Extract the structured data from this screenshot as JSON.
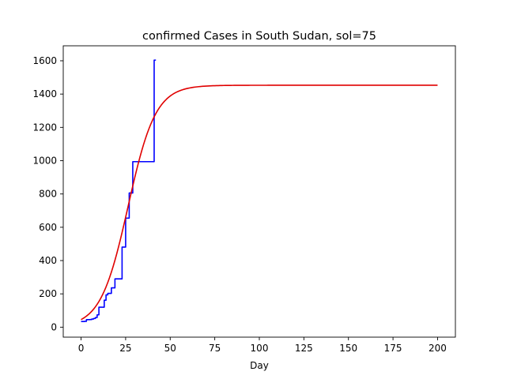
{
  "chart_data": {
    "type": "line",
    "title": "confirmed Cases in South Sudan, sol=75",
    "xlabel": "Day",
    "ylabel": "",
    "xlim": [
      -10,
      210
    ],
    "ylim": [
      -60,
      1690
    ],
    "xticks": [
      0,
      25,
      50,
      75,
      100,
      125,
      150,
      175,
      200
    ],
    "yticks": [
      0,
      200,
      400,
      600,
      800,
      1000,
      1200,
      1400,
      1600
    ],
    "grid": false,
    "series": [
      {
        "color": "#0000ff",
        "style": "step",
        "x": [
          0,
          1,
          2,
          3,
          4,
          5,
          6,
          7,
          8,
          9,
          10,
          11,
          12,
          13,
          14,
          15,
          16,
          17,
          18,
          19,
          20,
          21,
          22,
          23,
          24,
          25,
          26,
          27,
          28,
          29,
          30,
          31,
          32,
          33,
          34,
          35,
          36,
          37,
          38,
          39,
          40,
          41,
          42
        ],
        "y": [
          34,
          34,
          35,
          45,
          45,
          46,
          49,
          52,
          58,
          74,
          120,
          120,
          120,
          162,
          194,
          203,
          203,
          236,
          236,
          290,
          290,
          290,
          290,
          481,
          481,
          655,
          655,
          806,
          806,
          994,
          994,
          994,
          994,
          994,
          994,
          994,
          994,
          994,
          994,
          994,
          994,
          1604,
          1604
        ]
      },
      {
        "color": "#e00000",
        "style": "line",
        "logistic": {
          "K": 1453,
          "r": 0.13,
          "t0": 26.4,
          "n": 201
        }
      }
    ]
  }
}
